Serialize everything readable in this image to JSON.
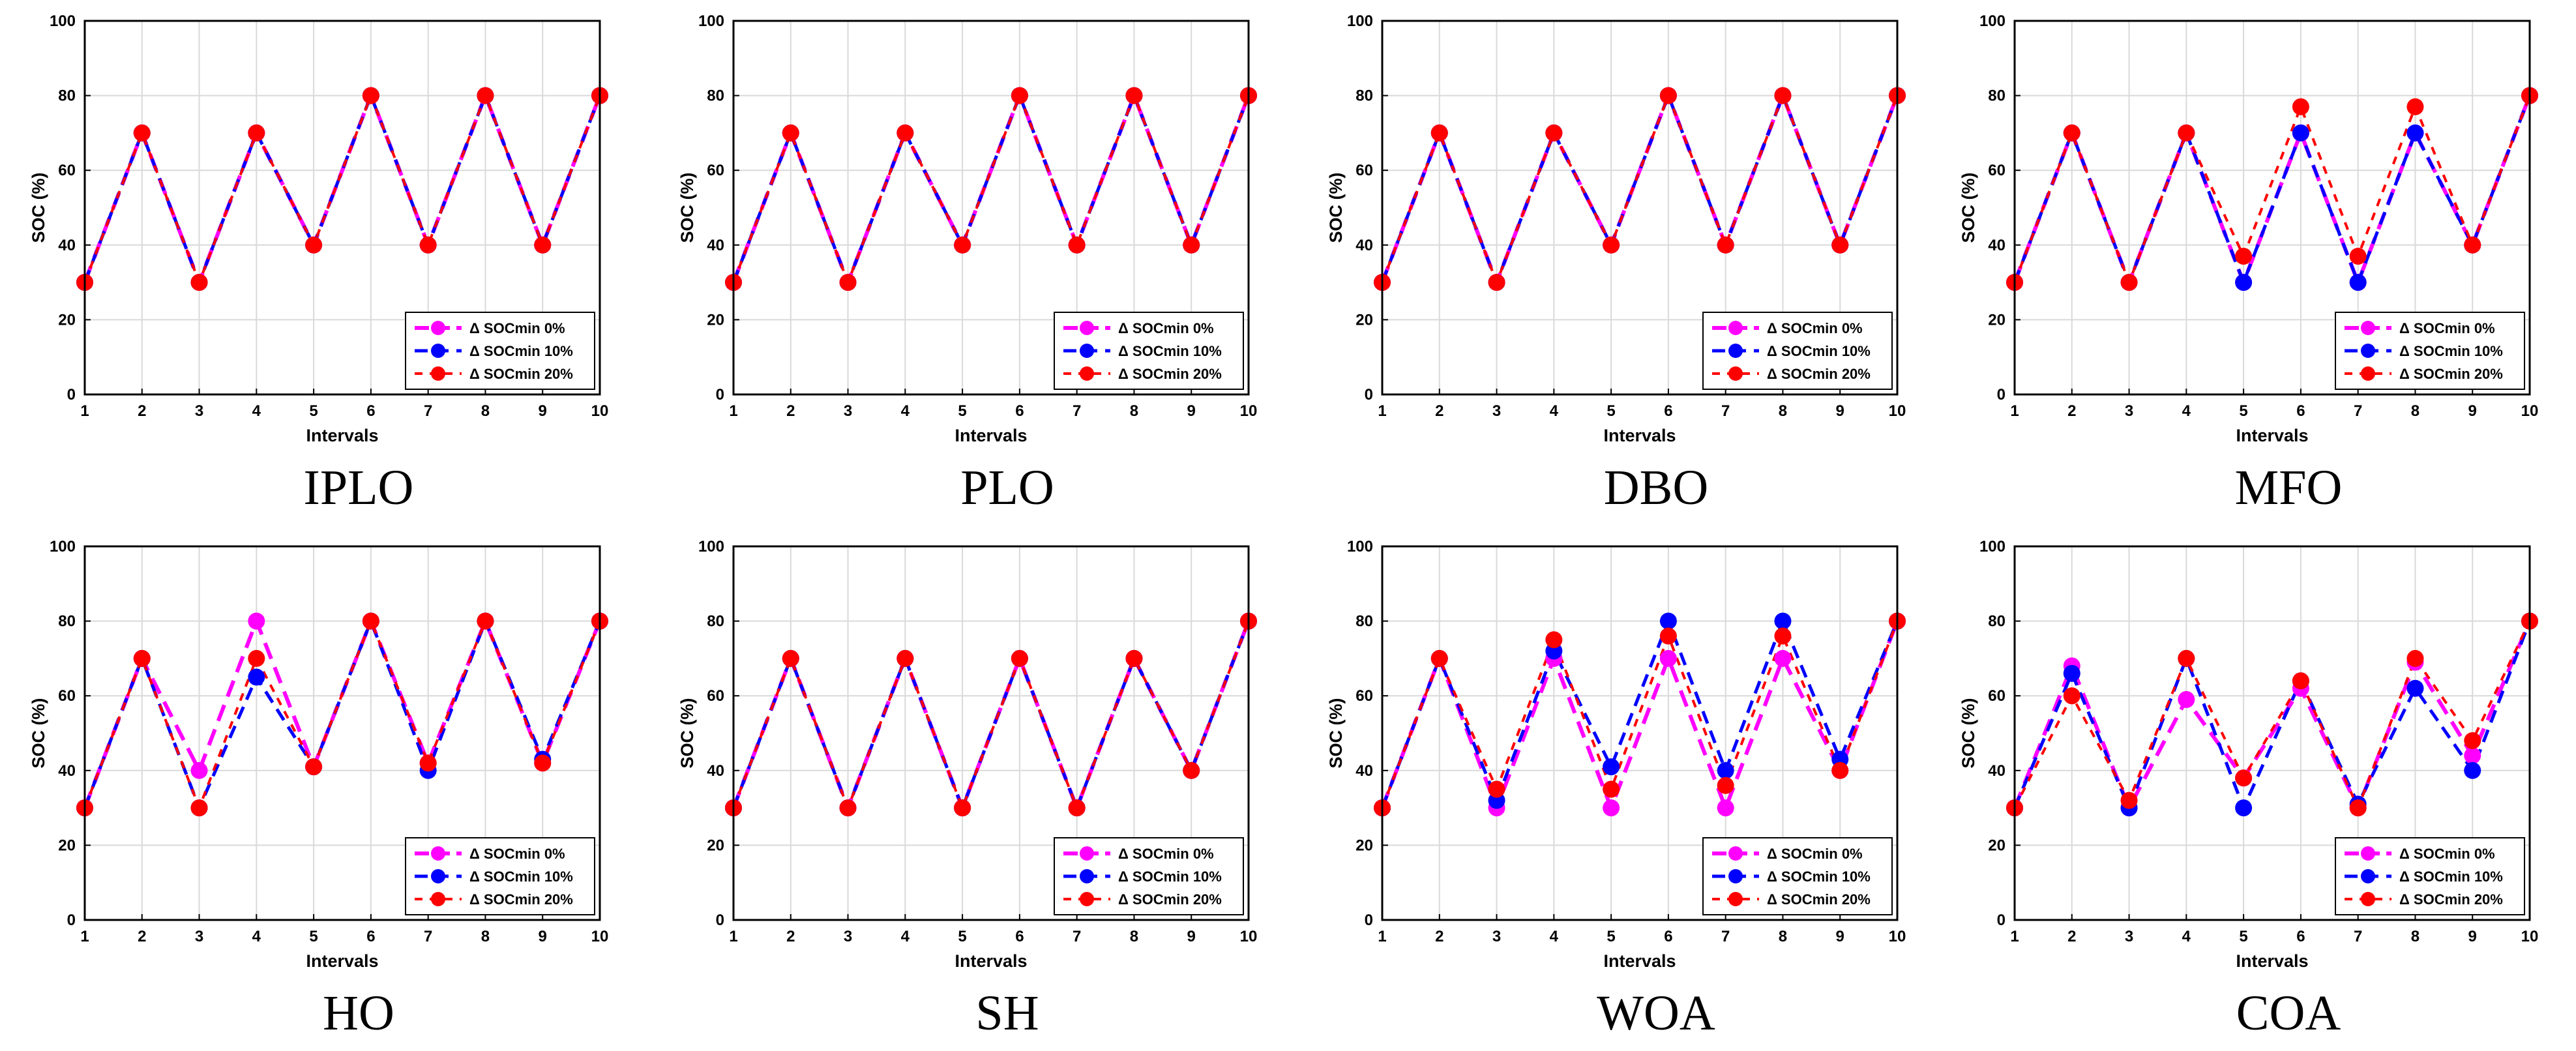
{
  "figure_title": "",
  "legend_symbol": "Δ",
  "chart_data": [
    {
      "type": "line",
      "title": "IPLO",
      "xlabel": "Intervals",
      "ylabel": "SOC (%)",
      "x": [
        1,
        2,
        3,
        4,
        5,
        6,
        7,
        8,
        9,
        10
      ],
      "xlim": [
        1,
        10
      ],
      "ylim": [
        0,
        100
      ],
      "yticks": [
        0,
        20,
        40,
        60,
        80,
        100
      ],
      "grid": true,
      "legend": "bottom-right",
      "series": [
        {
          "name": "Δ SOCmin 0%",
          "color": "#ff00ff",
          "values": [
            30,
            70,
            30,
            70,
            40,
            80,
            40,
            80,
            40,
            80
          ]
        },
        {
          "name": "Δ SOCmin 10%",
          "color": "#0000ff",
          "values": [
            30,
            70,
            30,
            70,
            40,
            80,
            40,
            80,
            40,
            80
          ]
        },
        {
          "name": "Δ SOCmin 20%",
          "color": "#ff0000",
          "values": [
            30,
            70,
            30,
            70,
            40,
            80,
            40,
            80,
            40,
            80
          ]
        }
      ]
    },
    {
      "type": "line",
      "title": "PLO",
      "xlabel": "Intervals",
      "ylabel": "SOC (%)",
      "x": [
        1,
        2,
        3,
        4,
        5,
        6,
        7,
        8,
        9,
        10
      ],
      "xlim": [
        1,
        10
      ],
      "ylim": [
        0,
        100
      ],
      "yticks": [
        0,
        20,
        40,
        60,
        80,
        100
      ],
      "grid": true,
      "legend": "bottom-right",
      "series": [
        {
          "name": "Δ SOCmin 0%",
          "color": "#ff00ff",
          "values": [
            30,
            70,
            30,
            70,
            40,
            80,
            40,
            80,
            40,
            80
          ]
        },
        {
          "name": "Δ SOCmin 10%",
          "color": "#0000ff",
          "values": [
            30,
            70,
            30,
            70,
            40,
            80,
            40,
            80,
            40,
            80
          ]
        },
        {
          "name": "Δ SOCmin 20%",
          "color": "#ff0000",
          "values": [
            30,
            70,
            30,
            70,
            40,
            80,
            40,
            80,
            40,
            80
          ]
        }
      ]
    },
    {
      "type": "line",
      "title": "DBO",
      "xlabel": "Intervals",
      "ylabel": "SOC (%)",
      "x": [
        1,
        2,
        3,
        4,
        5,
        6,
        7,
        8,
        9,
        10
      ],
      "xlim": [
        1,
        10
      ],
      "ylim": [
        0,
        100
      ],
      "yticks": [
        0,
        20,
        40,
        60,
        80,
        100
      ],
      "grid": true,
      "legend": "bottom-right",
      "series": [
        {
          "name": "Δ SOCmin 0%",
          "color": "#ff00ff",
          "values": [
            30,
            70,
            30,
            70,
            40,
            80,
            40,
            80,
            40,
            80
          ]
        },
        {
          "name": "Δ SOCmin 10%",
          "color": "#0000ff",
          "values": [
            30,
            70,
            30,
            70,
            40,
            80,
            40,
            80,
            40,
            80
          ]
        },
        {
          "name": "Δ SOCmin 20%",
          "color": "#ff0000",
          "values": [
            30,
            70,
            30,
            70,
            40,
            80,
            40,
            80,
            40,
            80
          ]
        }
      ]
    },
    {
      "type": "line",
      "title": "MFO",
      "xlabel": "Intervals",
      "ylabel": "SOC (%)",
      "x": [
        1,
        2,
        3,
        4,
        5,
        6,
        7,
        8,
        9,
        10
      ],
      "xlim": [
        1,
        10
      ],
      "ylim": [
        0,
        100
      ],
      "yticks": [
        0,
        20,
        40,
        60,
        80,
        100
      ],
      "grid": true,
      "legend": "bottom-right",
      "series": [
        {
          "name": "Δ SOCmin 0%",
          "color": "#ff00ff",
          "values": [
            30,
            70,
            30,
            70,
            30,
            70,
            30,
            70,
            40,
            80
          ]
        },
        {
          "name": "Δ SOCmin 10%",
          "color": "#0000ff",
          "values": [
            30,
            70,
            30,
            70,
            30,
            70,
            30,
            70,
            40,
            80
          ]
        },
        {
          "name": "Δ SOCmin 20%",
          "color": "#ff0000",
          "values": [
            30,
            70,
            30,
            70,
            37,
            77,
            37,
            77,
            40,
            80
          ]
        }
      ]
    },
    {
      "type": "line",
      "title": "HO",
      "xlabel": "Intervals",
      "ylabel": "SOC (%)",
      "x": [
        1,
        2,
        3,
        4,
        5,
        6,
        7,
        8,
        9,
        10
      ],
      "xlim": [
        1,
        10
      ],
      "ylim": [
        0,
        100
      ],
      "yticks": [
        0,
        20,
        40,
        60,
        80,
        100
      ],
      "grid": true,
      "legend": "bottom-right",
      "series": [
        {
          "name": "Δ SOCmin 0%",
          "color": "#ff00ff",
          "values": [
            30,
            70,
            40,
            80,
            41,
            80,
            42,
            80,
            42,
            80
          ]
        },
        {
          "name": "Δ SOCmin 10%",
          "color": "#0000ff",
          "values": [
            30,
            70,
            30,
            65,
            41,
            80,
            40,
            80,
            43,
            80
          ]
        },
        {
          "name": "Δ SOCmin 20%",
          "color": "#ff0000",
          "values": [
            30,
            70,
            30,
            70,
            41,
            80,
            42,
            80,
            42,
            80
          ]
        }
      ]
    },
    {
      "type": "line",
      "title": "SH",
      "xlabel": "Intervals",
      "ylabel": "SOC (%)",
      "x": [
        1,
        2,
        3,
        4,
        5,
        6,
        7,
        8,
        9,
        10
      ],
      "xlim": [
        1,
        10
      ],
      "ylim": [
        0,
        100
      ],
      "yticks": [
        0,
        20,
        40,
        60,
        80,
        100
      ],
      "grid": true,
      "legend": "bottom-right",
      "series": [
        {
          "name": "Δ SOCmin 0%",
          "color": "#ff00ff",
          "values": [
            30,
            70,
            30,
            70,
            30,
            70,
            30,
            70,
            40,
            80
          ]
        },
        {
          "name": "Δ SOCmin 10%",
          "color": "#0000ff",
          "values": [
            30,
            70,
            30,
            70,
            30,
            70,
            30,
            70,
            40,
            80
          ]
        },
        {
          "name": "Δ SOCmin 20%",
          "color": "#ff0000",
          "values": [
            30,
            70,
            30,
            70,
            30,
            70,
            30,
            70,
            40,
            80
          ]
        }
      ]
    },
    {
      "type": "line",
      "title": "WOA",
      "xlabel": "Intervals",
      "ylabel": "SOC (%)",
      "x": [
        1,
        2,
        3,
        4,
        5,
        6,
        7,
        8,
        9,
        10
      ],
      "xlim": [
        1,
        10
      ],
      "ylim": [
        0,
        100
      ],
      "yticks": [
        0,
        20,
        40,
        60,
        80,
        100
      ],
      "grid": true,
      "legend": "bottom-right",
      "series": [
        {
          "name": "Δ SOCmin 0%",
          "color": "#ff00ff",
          "values": [
            30,
            70,
            30,
            70,
            30,
            70,
            30,
            70,
            40,
            80
          ]
        },
        {
          "name": "Δ SOCmin 10%",
          "color": "#0000ff",
          "values": [
            30,
            70,
            32,
            72,
            41,
            80,
            40,
            80,
            43,
            80
          ]
        },
        {
          "name": "Δ SOCmin 20%",
          "color": "#ff0000",
          "values": [
            30,
            70,
            35,
            75,
            35,
            76,
            36,
            76,
            40,
            80
          ]
        }
      ]
    },
    {
      "type": "line",
      "title": "COA",
      "xlabel": "Intervals",
      "ylabel": "SOC (%)",
      "x": [
        1,
        2,
        3,
        4,
        5,
        6,
        7,
        8,
        9,
        10
      ],
      "xlim": [
        1,
        10
      ],
      "ylim": [
        0,
        100
      ],
      "yticks": [
        0,
        20,
        40,
        60,
        80,
        100
      ],
      "grid": true,
      "legend": "bottom-right",
      "series": [
        {
          "name": "Δ SOCmin 0%",
          "color": "#ff00ff",
          "values": [
            30,
            68,
            30,
            59,
            38,
            62,
            30,
            69,
            44,
            80
          ]
        },
        {
          "name": "Δ SOCmin 10%",
          "color": "#0000ff",
          "values": [
            30,
            66,
            30,
            70,
            30,
            64,
            31,
            62,
            40,
            80
          ]
        },
        {
          "name": "Δ SOCmin 20%",
          "color": "#ff0000",
          "values": [
            30,
            60,
            32,
            70,
            38,
            64,
            30,
            70,
            48,
            80
          ]
        }
      ]
    }
  ]
}
